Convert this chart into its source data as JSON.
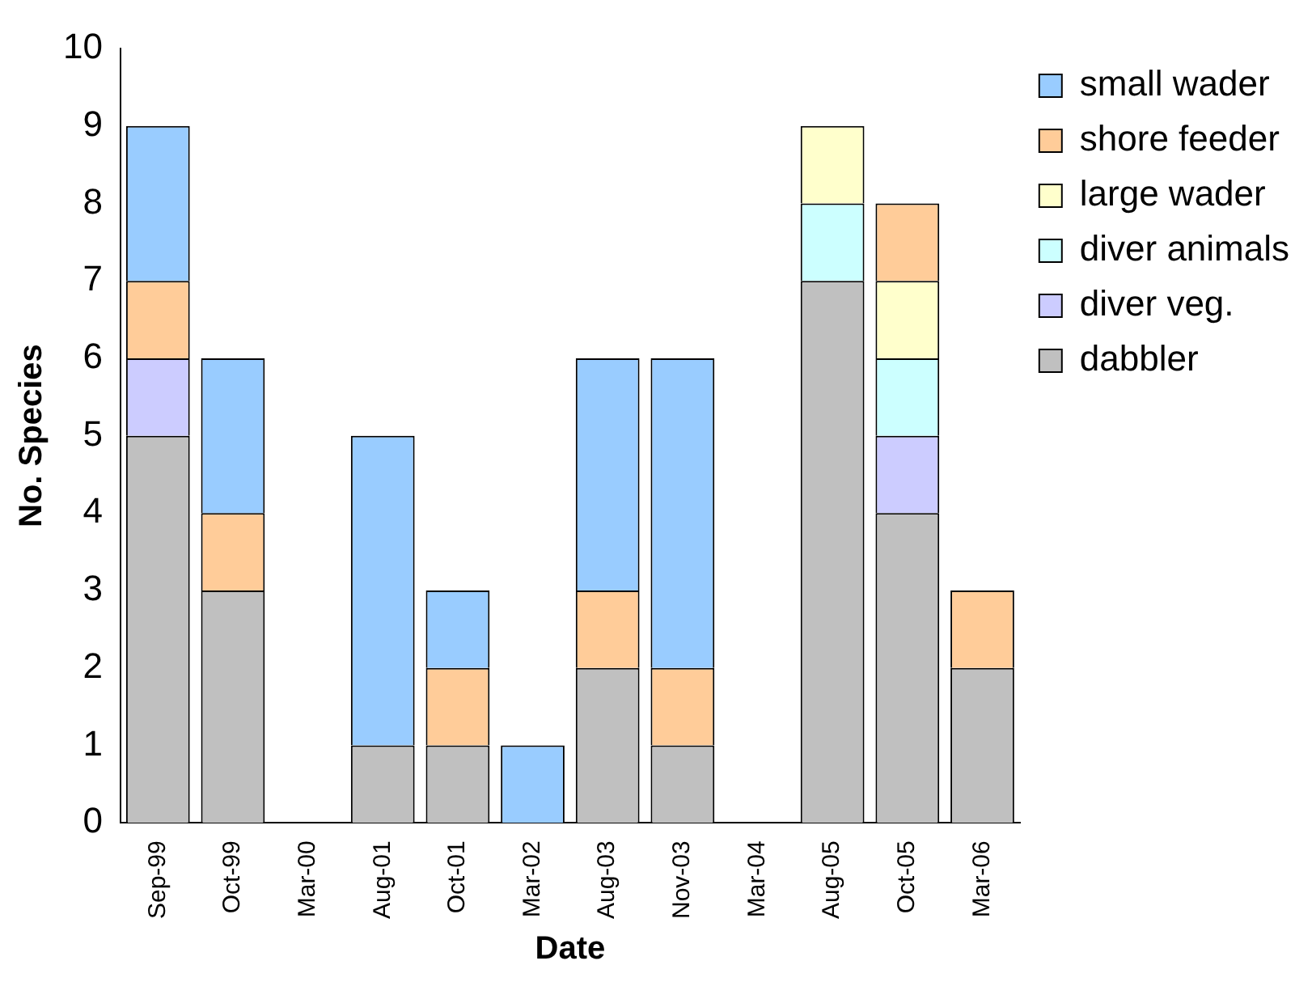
{
  "chart_data": {
    "type": "bar",
    "stacked": true,
    "xlabel": "Date",
    "ylabel": "No. Species",
    "categories": [
      "Sep-99",
      "Oct-99",
      "Mar-00",
      "Aug-01",
      "Oct-01",
      "Mar-02",
      "Aug-03",
      "Nov-03",
      "Mar-04",
      "Aug-05",
      "Oct-05",
      "Mar-06"
    ],
    "series": [
      {
        "name": "dabbler",
        "color": "#c0c0c0",
        "values": [
          5,
          3,
          0,
          1,
          1,
          0,
          2,
          1,
          0,
          7,
          4,
          2
        ]
      },
      {
        "name": "diver veg.",
        "color": "#ccccff",
        "values": [
          1,
          0,
          0,
          0,
          0,
          0,
          0,
          0,
          0,
          0,
          1,
          0
        ]
      },
      {
        "name": "diver animals",
        "color": "#ccffff",
        "values": [
          0,
          0,
          0,
          0,
          0,
          0,
          0,
          0,
          0,
          1,
          1,
          0
        ]
      },
      {
        "name": "large wader",
        "color": "#ffffcc",
        "values": [
          0,
          0,
          0,
          0,
          0,
          0,
          0,
          0,
          0,
          1,
          1,
          0
        ]
      },
      {
        "name": "shore feeder",
        "color": "#ffcc99",
        "values": [
          1,
          1,
          0,
          0,
          1,
          0,
          1,
          1,
          0,
          0,
          1,
          1
        ]
      },
      {
        "name": "small wader",
        "color": "#99ccff",
        "values": [
          2,
          2,
          0,
          4,
          1,
          1,
          3,
          4,
          0,
          0,
          0,
          0
        ]
      }
    ],
    "ylim": [
      0,
      10
    ],
    "yticks": [
      0,
      1,
      2,
      3,
      4,
      5,
      6,
      7,
      8,
      9,
      10
    ],
    "grid": false,
    "legend": "top right"
  }
}
